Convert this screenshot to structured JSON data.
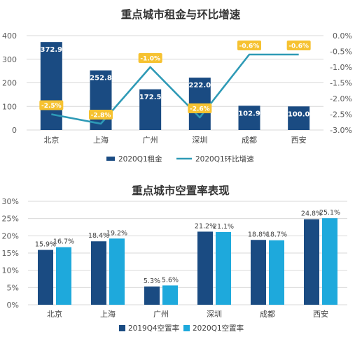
{
  "colors": {
    "dark_navy": "#1a4b82",
    "teal_line": "#2e9ab6",
    "bright_blue": "#1ea9dc",
    "badge_yellow": "#f6c231",
    "grid": "#d9d9d9",
    "axis_text": "#595959"
  },
  "chart_data": [
    {
      "type": "bar",
      "title": "重点城市租金与环比增速",
      "categories": [
        "北京",
        "上海",
        "广州",
        "深圳",
        "成都",
        "西安"
      ],
      "series": [
        {
          "name": "2020Q1租金",
          "kind": "bar",
          "axis": "left",
          "values": [
            372.9,
            252.8,
            172.5,
            222.0,
            102.9,
            100.0
          ],
          "labels": [
            "372.9",
            "252.8",
            "172.5",
            "222.0",
            "102.9",
            "100.0"
          ]
        },
        {
          "name": "2020Q1环比增速",
          "kind": "line",
          "axis": "right",
          "values": [
            -2.5,
            -2.8,
            -1.0,
            -2.6,
            -0.6,
            -0.6
          ],
          "labels": [
            "-2.5%",
            "-2.8%",
            "-1.0%",
            "-2.6%",
            "-0.6%",
            "-0.6%"
          ]
        }
      ],
      "left_axis": {
        "ylim": [
          0,
          400
        ],
        "ticks": [
          "0",
          "100",
          "200",
          "300",
          "400"
        ]
      },
      "right_axis": {
        "ylim": [
          -3.0,
          0.0
        ],
        "ticks": [
          "-3.0%",
          "-2.5%",
          "-2.0%",
          "-1.5%",
          "-1.0%",
          "-0.5%",
          "0.0%"
        ]
      },
      "grid": true,
      "legend": "bottom"
    },
    {
      "type": "bar",
      "title": "重点城市空置率表现",
      "categories": [
        "北京",
        "上海",
        "广州",
        "深圳",
        "成都",
        "西安"
      ],
      "series": [
        {
          "name": "2019Q4空置率",
          "values": [
            15.9,
            18.4,
            5.3,
            21.2,
            18.8,
            24.8
          ],
          "labels": [
            "15.9%",
            "18.4%",
            "5.3%",
            "21.2%",
            "18.8%",
            "24.8%"
          ]
        },
        {
          "name": "2020Q1空置率",
          "values": [
            16.7,
            19.2,
            5.6,
            21.1,
            18.7,
            25.1
          ],
          "labels": [
            "16.7%",
            "19.2%",
            "5.6%",
            "21.1%",
            "18.7%",
            "25.1%"
          ]
        }
      ],
      "left_axis": {
        "ylim": [
          0,
          30
        ],
        "ticks": [
          "0%",
          "5%",
          "10%",
          "15%",
          "20%",
          "25%",
          "30%"
        ]
      },
      "grid": true,
      "legend": "bottom"
    }
  ]
}
